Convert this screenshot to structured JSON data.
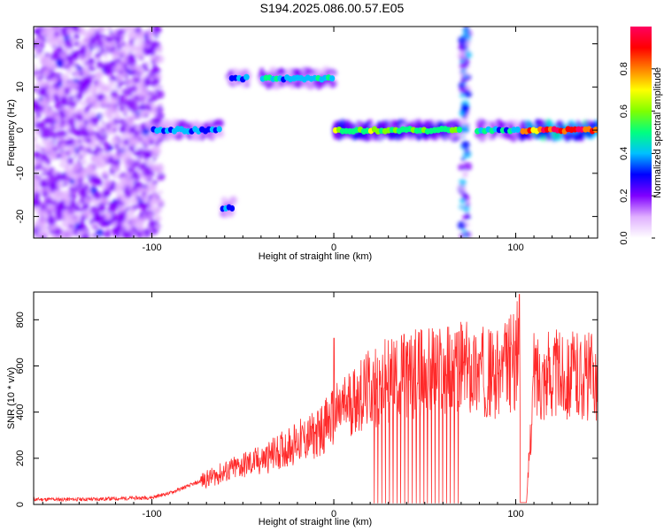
{
  "title": "S194.2025.086.00.57.E05",
  "colors": {
    "snr_line": "#ff2a2a",
    "axis": "#000000",
    "colorbar_stops": [
      "#ffffff",
      "#e0b0ff",
      "#8000ff",
      "#0000ff",
      "#00c0ff",
      "#00ff80",
      "#80ff00",
      "#ffff00",
      "#ff8000",
      "#ff0000",
      "#ff0060"
    ]
  },
  "chart_data": [
    {
      "type": "heatmap",
      "title": "",
      "xlabel": "Height of straight line (km)",
      "ylabel": "Frequency (Hz)",
      "xlim": [
        -165,
        145
      ],
      "ylim": [
        -25,
        24
      ],
      "xticks": [
        -100,
        0,
        100
      ],
      "xtick_labels": [
        "-100",
        "0",
        "100"
      ],
      "yticks": [
        -20,
        -10,
        0,
        10,
        20
      ],
      "ytick_labels": [
        "-20",
        "-10",
        "0",
        "10",
        "20"
      ],
      "colorbar": {
        "label": "Normalized spectral amplitude",
        "range": [
          0,
          1
        ],
        "ticks": [
          0.0,
          0.2,
          0.4,
          0.6,
          0.8
        ],
        "tick_labels": [
          "0.0",
          "0.2",
          "0.4",
          "0.6",
          "0.8"
        ]
      },
      "features": [
        {
          "x_range": [
            -165,
            -95
          ],
          "freq_range": [
            -25,
            24
          ],
          "amplitude": 0.15
        },
        {
          "x_range": [
            -100,
            -62
          ],
          "freq": 0,
          "amplitude": 0.4
        },
        {
          "x_range": [
            -62,
            -55
          ],
          "freq": -18,
          "amplitude": 0.35
        },
        {
          "x_range": [
            -57,
            -47
          ],
          "freq": 12,
          "amplitude": 0.4
        },
        {
          "x_range": [
            -40,
            0
          ],
          "freq": 12,
          "amplitude": 0.45
        },
        {
          "x_range": [
            0,
            70
          ],
          "freq": 0,
          "amplitude": 0.6
        },
        {
          "x_range": [
            70,
            74
          ],
          "freq_range": [
            -25,
            24
          ],
          "amplitude": 0.25
        },
        {
          "x_range": [
            78,
            102
          ],
          "freq": 0,
          "amplitude": 0.45
        },
        {
          "x_range": [
            103,
            145
          ],
          "freq": 0,
          "amplitude": 0.95
        }
      ]
    },
    {
      "type": "line",
      "title": "",
      "xlabel": "Height of straight line (km)",
      "ylabel": "SNR (10 * v/v)",
      "xlim": [
        -165,
        145
      ],
      "ylim": [
        0,
        920
      ],
      "xticks": [
        -100,
        0,
        100
      ],
      "xtick_labels": [
        "-100",
        "0",
        "100"
      ],
      "yticks": [
        0,
        200,
        400,
        600,
        800
      ],
      "ytick_labels": [
        "0",
        "200",
        "400",
        "600",
        "800"
      ],
      "series": [
        {
          "x": [
            -165,
            -140,
            -120,
            -100,
            -90,
            -80,
            -70,
            -60,
            -50,
            -40,
            -30,
            -20,
            -10,
            0,
            10,
            20,
            30,
            40,
            50,
            60,
            70,
            80,
            90,
            95,
            100,
            102,
            104,
            106,
            110,
            120,
            130,
            145
          ],
          "values": [
            22,
            22,
            25,
            30,
            50,
            80,
            110,
            140,
            170,
            190,
            230,
            270,
            300,
            380,
            450,
            500,
            540,
            560,
            570,
            580,
            590,
            580,
            560,
            600,
            630,
            700,
            10,
            10,
            560,
            565,
            560,
            555
          ]
        }
      ],
      "annotations": [
        {
          "x": 0,
          "value": 720
        },
        {
          "x": 102,
          "value": 910
        }
      ]
    }
  ]
}
